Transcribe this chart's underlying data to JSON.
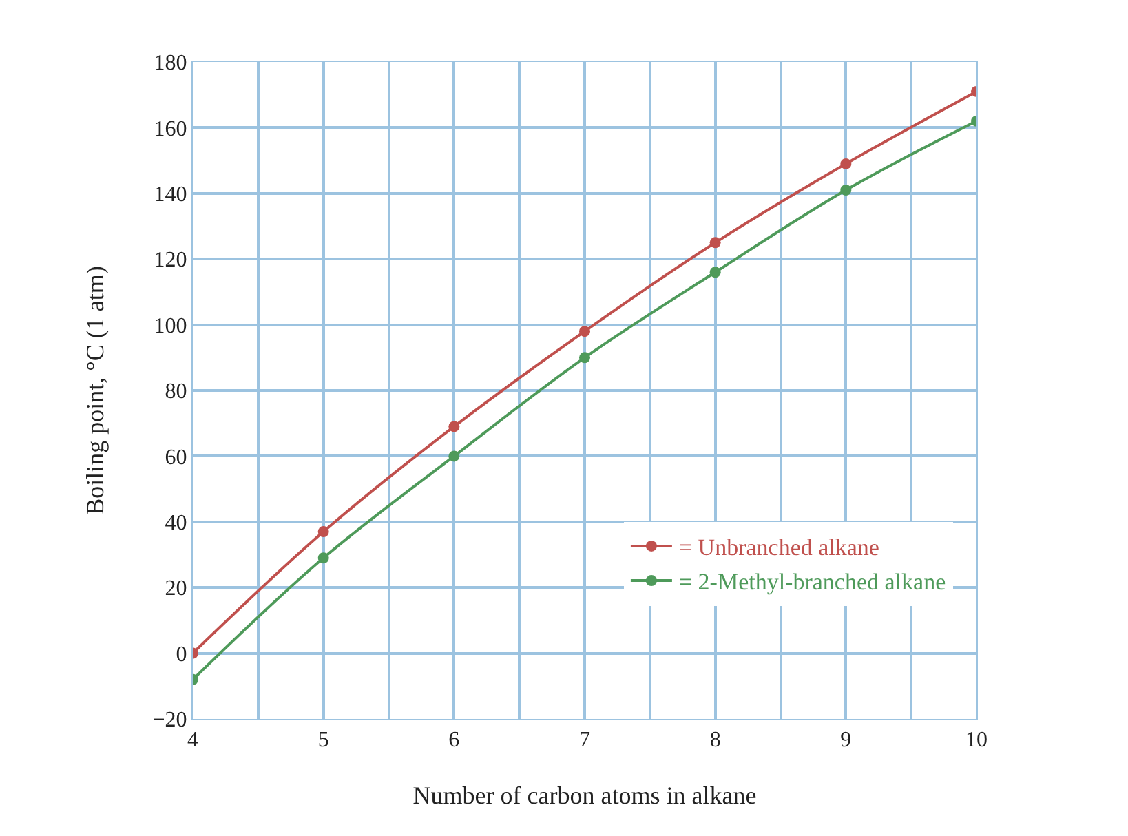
{
  "chart_data": {
    "type": "line",
    "xlabel": "Number of carbon atoms in alkane",
    "ylabel": "Boiling point, °C (1 atm)",
    "x": [
      4,
      5,
      6,
      7,
      8,
      9,
      10
    ],
    "series": [
      {
        "name": "= Unbranched alkane",
        "color": "#c0504d",
        "values": [
          0,
          37,
          69,
          98,
          125,
          149,
          171
        ]
      },
      {
        "name": "= 2-Methyl-branched alkane",
        "color": "#4e9a5a",
        "values": [
          -8,
          29,
          60,
          90,
          116,
          141,
          162
        ]
      }
    ],
    "xlim": [
      4,
      10
    ],
    "xticks": [
      4,
      {
        "value": 4.5,
        "label": null
      },
      5,
      {
        "value": 5.5,
        "label": null
      },
      6,
      {
        "value": 6.5,
        "label": null
      },
      7,
      {
        "value": 7.5,
        "label": null
      },
      8,
      {
        "value": 8.5,
        "label": null
      },
      9,
      {
        "value": 9.5,
        "label": null
      },
      10
    ],
    "ylim": [
      -20,
      180
    ],
    "yticks": [
      {
        "value": -20,
        "label": "−20"
      },
      0,
      20,
      40,
      60,
      80,
      100,
      120,
      140,
      160,
      180
    ],
    "grid": true,
    "legend": "bottom right",
    "marker": "circle",
    "line_style": "solid"
  }
}
